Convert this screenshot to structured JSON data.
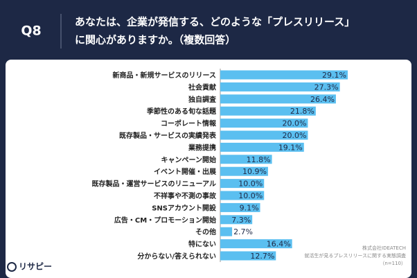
{
  "header": {
    "label": "Q8",
    "question": [
      "あなたは、企業が発信する、どのような「プレスリリース」",
      "に関心がありますか。（複数回答）"
    ]
  },
  "chart_data": {
    "type": "hbar",
    "color": "#5bbff0",
    "categories": [
      "新商品・新規サービスのリリース",
      "社会貢献",
      "独自調査",
      "季節性のある旬な話題",
      "コーポレート情報",
      "既存製品・サービスの実績発表",
      "業務提携",
      "キャンペーン開始",
      "イベント開催・出展",
      "既存製品・運営サービスのリニューアル",
      "不祥事や不測の事故",
      "SNSアカウント開設",
      "広告・CM・プロモーション開始",
      "その他",
      "特にない",
      "分からない/答えられない"
    ],
    "values": [
      29.1,
      27.3,
      26.4,
      21.8,
      20.0,
      20.0,
      19.1,
      11.8,
      10.9,
      10.0,
      10.0,
      9.1,
      7.3,
      2.7,
      16.4,
      12.7
    ],
    "value_labels": [
      "29.1%",
      "27.3%",
      "26.4%",
      "21.8%",
      "20.0%",
      "20.0%",
      "19.1%",
      "11.8%",
      "10.9%",
      "10.0%",
      "10.0%",
      "9.1%",
      "7.3%",
      "2.7%",
      "16.4%",
      "12.7%"
    ]
  },
  "footer": {
    "logo": "リサピー",
    "source": [
      "株式会社IDEATECH",
      "就活生が見るプレスリリースに関する実態調査",
      "（n=110）"
    ]
  }
}
